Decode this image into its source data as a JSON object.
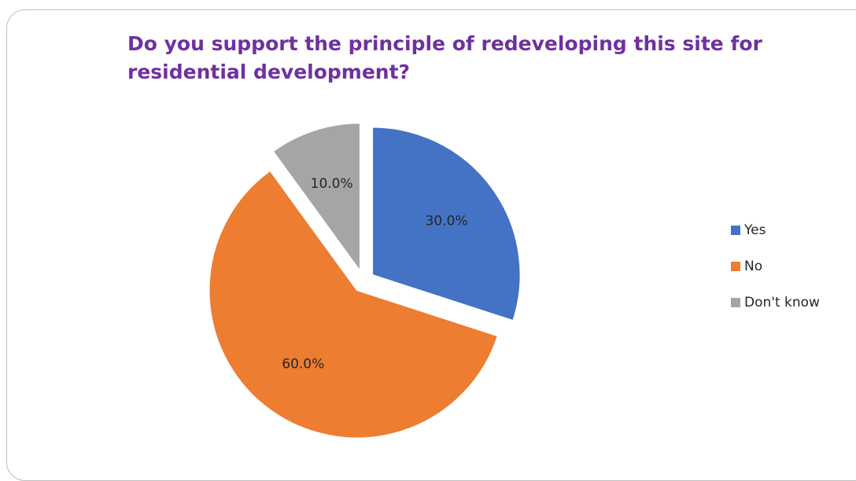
{
  "chart_data": {
    "type": "pie",
    "title": "Do you support the principle of redeveloping this site for residential development?",
    "categories": [
      "Yes",
      "No",
      "Don't know"
    ],
    "values": [
      30.0,
      60.0,
      10.0
    ],
    "labels": [
      "30.0%",
      "60.0%",
      "10.0%"
    ],
    "colors": [
      "#4472c4",
      "#ed7d31",
      "#a5a5a5"
    ],
    "exploded": true,
    "legend_position": "right"
  }
}
